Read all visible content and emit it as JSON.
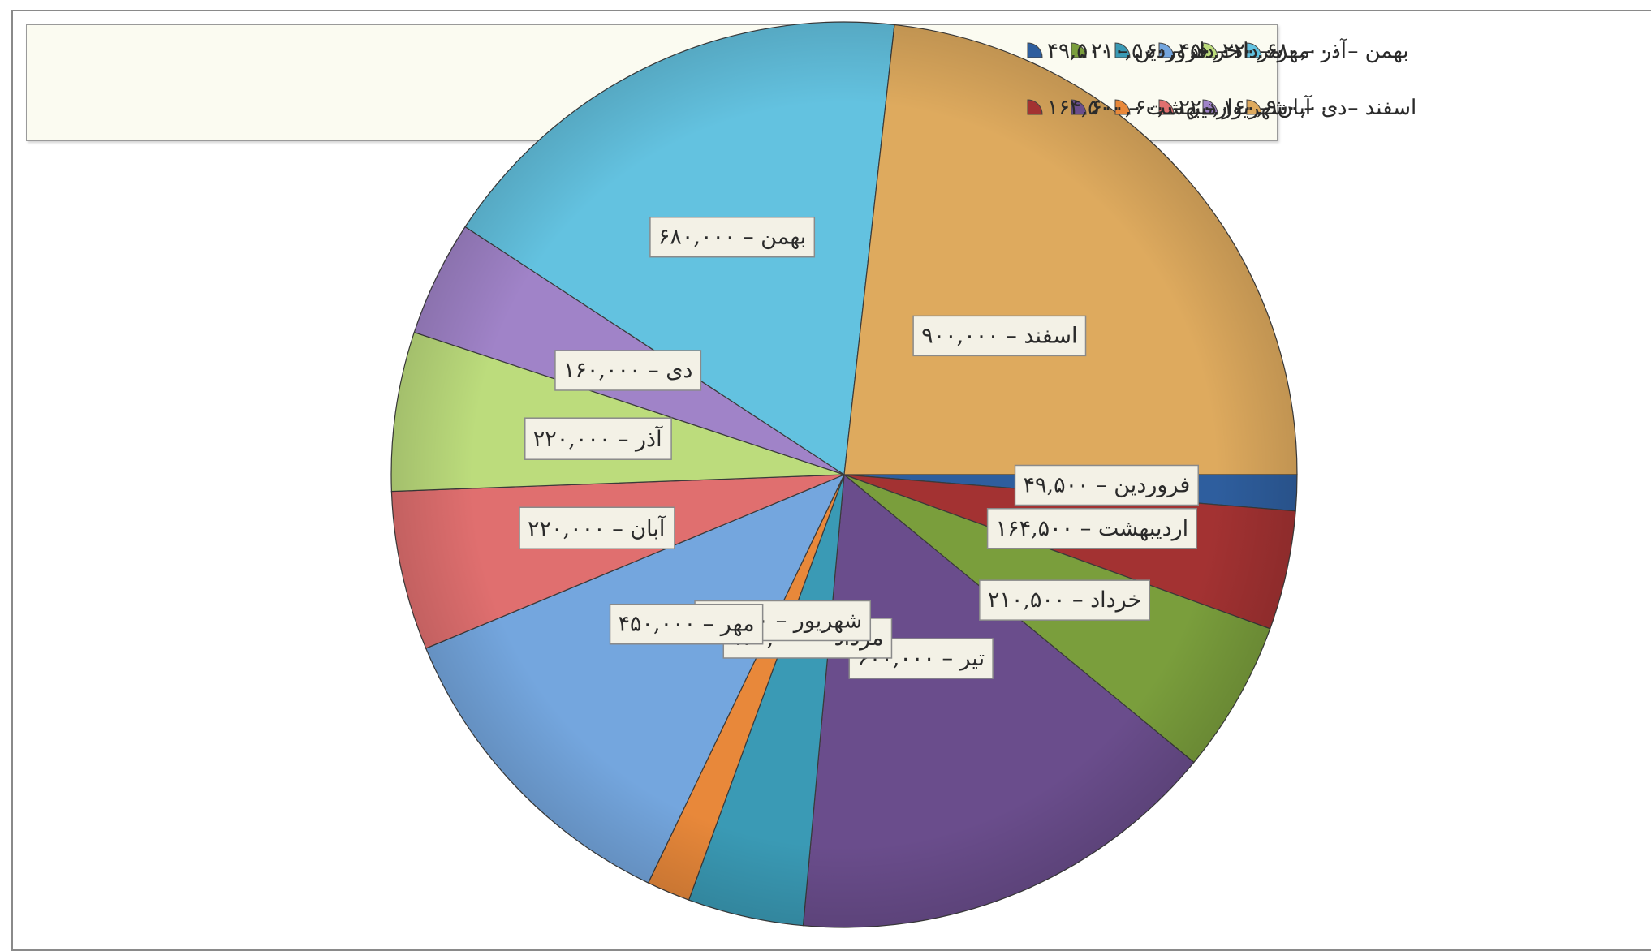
{
  "chart_data": {
    "type": "pie",
    "separator": " – ",
    "slices": [
      {
        "label": "فروردین",
        "value": 49500,
        "value_text": "۴۹,۵۰۰",
        "color": "#2e5e9e"
      },
      {
        "label": "اردیبهشت",
        "value": 164500,
        "value_text": "۱۶۴,۵۰۰",
        "color": "#a33232"
      },
      {
        "label": "خرداد",
        "value": 210500,
        "value_text": "۲۱۰,۵۰۰",
        "color": "#7a9e3c"
      },
      {
        "label": "تیر",
        "value": 600000,
        "value_text": "۶۰۰,۰۰۰",
        "color": "#6a4d8c"
      },
      {
        "label": "مرداد",
        "value": 160000,
        "value_text": "۱۶۰,۰۰۰",
        "color": "#3a9ab5"
      },
      {
        "label": "شهریور",
        "value": 60000,
        "value_text": "۶۰,۰۰۰",
        "color": "#e8883a"
      },
      {
        "label": "مهر",
        "value": 450000,
        "value_text": "۴۵۰,۰۰۰",
        "color": "#74a6de"
      },
      {
        "label": "آبان",
        "value": 220000,
        "value_text": "۲۲۰,۰۰۰",
        "color": "#e06f6f"
      },
      {
        "label": "آذر",
        "value": 220000,
        "value_text": "۲۲۰,۰۰۰",
        "color": "#bcdc7c"
      },
      {
        "label": "دی",
        "value": 160000,
        "value_text": "۱۶۰,۰۰۰",
        "color": "#a083c8"
      },
      {
        "label": "بهمن",
        "value": 680000,
        "value_text": "۶۸۰,۰۰۰",
        "color": "#63c2e0"
      },
      {
        "label": "اسفند",
        "value": 900000,
        "value_text": "۹۰۰,۰۰۰",
        "color": "#deaa5e"
      }
    ],
    "legend_rows": [
      [
        "بهمن",
        "آذر",
        "مهر",
        "مرداد",
        "خرداد",
        "فروردین"
      ],
      [
        "اسفند",
        "دی",
        "آبان",
        "شهریور",
        "تیر",
        "اردیبهشت"
      ]
    ],
    "legend_position": "top-left"
  }
}
